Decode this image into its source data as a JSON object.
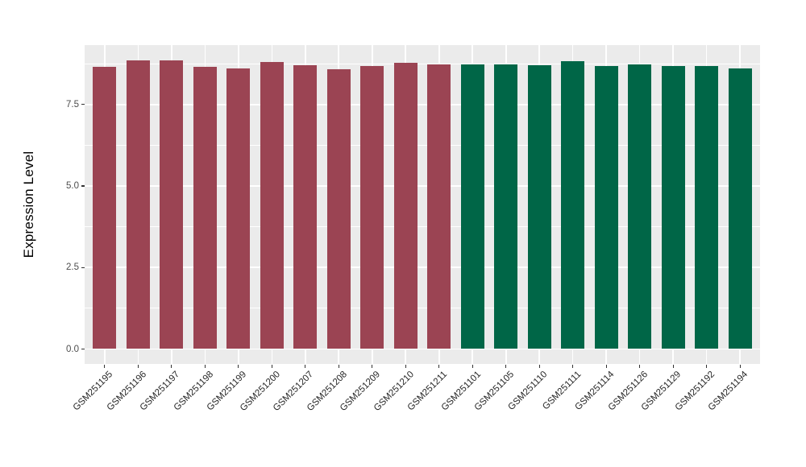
{
  "chart_data": {
    "type": "bar",
    "title": "",
    "xlabel": "",
    "ylabel": "Expression Level",
    "ylim": [
      0,
      9.3
    ],
    "ytick_labels": [
      "0.0",
      "2.5",
      "5.0",
      "7.5"
    ],
    "ytick_values": [
      0,
      2.5,
      5,
      7.5
    ],
    "minor_grid_values": [
      1.25,
      3.75,
      6.25,
      8.75
    ],
    "grid": "white major and minor gridlines on gray panel",
    "legend_position": "none",
    "categories": [
      "GSM251195",
      "GSM251196",
      "GSM251197",
      "GSM251198",
      "GSM251199",
      "GSM251200",
      "GSM251207",
      "GSM251208",
      "GSM251209",
      "GSM251210",
      "GSM251211",
      "GSM251101",
      "GSM251105",
      "GSM251110",
      "GSM251111",
      "GSM251114",
      "GSM251126",
      "GSM251129",
      "GSM251192",
      "GSM251194"
    ],
    "values": [
      8.66,
      8.84,
      8.84,
      8.66,
      8.61,
      8.81,
      8.7,
      8.57,
      8.67,
      8.79,
      8.74,
      8.74,
      8.74,
      8.71,
      8.83,
      8.67,
      8.74,
      8.67,
      8.67,
      8.6
    ],
    "bar_colors": [
      "#9B4453",
      "#9B4453",
      "#9B4453",
      "#9B4453",
      "#9B4453",
      "#9B4453",
      "#9B4453",
      "#9B4453",
      "#9B4453",
      "#9B4453",
      "#9B4453",
      "#006647",
      "#006647",
      "#006647",
      "#006647",
      "#006647",
      "#006647",
      "#006647",
      "#006647",
      "#006647"
    ]
  },
  "colors": {
    "group_left_bars": "#9B4453",
    "group_right_bars": "#006647",
    "panel_background": "#EBEBEB",
    "gridline": "#FFFFFF",
    "axis_text": "#4D4D4D",
    "page_background": "#FFFFFF"
  }
}
